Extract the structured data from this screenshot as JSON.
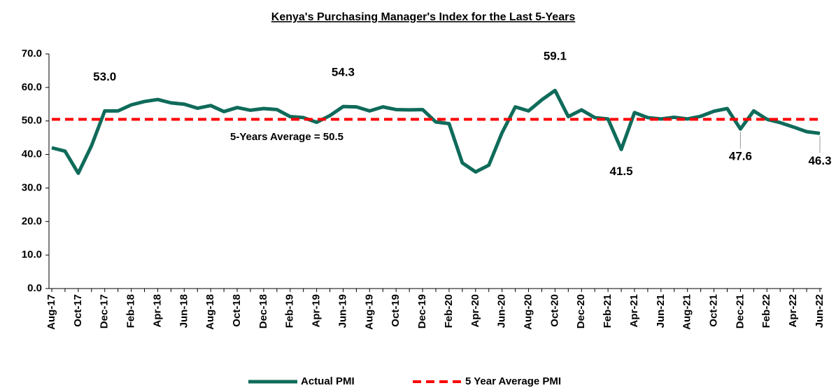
{
  "chart_data": {
    "type": "line",
    "title": "Kenya's Purchasing Manager's Index for the Last 5-Years",
    "categories": [
      "Aug-17",
      null,
      "Oct-17",
      null,
      "Dec-17",
      null,
      "Feb-18",
      null,
      "Apr-18",
      null,
      "Jun-18",
      null,
      "Aug-18",
      null,
      "Oct-18",
      null,
      "Dec-18",
      null,
      "Feb-19",
      null,
      "Apr-19",
      null,
      "Jun-19",
      null,
      "Aug-19",
      null,
      "Oct-19",
      null,
      "Dec-19",
      null,
      "Feb-20",
      null,
      "Apr-20",
      null,
      "Jun-20",
      null,
      "Aug-20",
      null,
      "Oct-20",
      null,
      "Dec-20",
      null,
      "Feb-21",
      null,
      "Apr-21",
      null,
      "Jun-21",
      null,
      "Aug-21",
      null,
      "Oct-21",
      null,
      "Dec-21",
      null,
      "Feb-22",
      null,
      "Apr-22",
      null,
      "Jun-22"
    ],
    "series": [
      {
        "name": "Actual PMI",
        "color": "#0f6b5a",
        "values": [
          42,
          41,
          34.4,
          42.6,
          53,
          53,
          54.8,
          55.8,
          56.4,
          55.4,
          55,
          53.8,
          54.6,
          52.8,
          54,
          53.2,
          53.7,
          53.4,
          51.3,
          51,
          49.6,
          51.6,
          54.3,
          54.2,
          53,
          54.2,
          53.4,
          53.3,
          53.4,
          49.7,
          49.2,
          37.5,
          34.8,
          36.8,
          46.5,
          54.2,
          53,
          56.3,
          59.1,
          51.3,
          53.3,
          51,
          50.6,
          41.5,
          52.5,
          51,
          50.6,
          51.1,
          50.6,
          51.4,
          52.9,
          53.7,
          47.6,
          53,
          50.5,
          49.5,
          48.2,
          46.8,
          46.3
        ],
        "value_labels": [
          null,
          null,
          null,
          null,
          "53.0",
          null,
          null,
          null,
          null,
          null,
          null,
          null,
          null,
          null,
          null,
          null,
          null,
          null,
          null,
          null,
          null,
          null,
          "54.3",
          null,
          null,
          null,
          null,
          null,
          null,
          null,
          null,
          null,
          null,
          null,
          null,
          null,
          null,
          null,
          "59.1",
          null,
          null,
          null,
          null,
          "41.5",
          null,
          null,
          null,
          null,
          null,
          null,
          null,
          null,
          "47.6",
          null,
          null,
          null,
          null,
          null,
          "46.3"
        ]
      },
      {
        "name": "5 Year Average PMI",
        "color": "#ff0000",
        "dashed": true,
        "values": [
          50.5,
          50.5,
          50.5,
          50.5,
          50.5,
          50.5,
          50.5,
          50.5,
          50.5,
          50.5,
          50.5,
          50.5,
          50.5,
          50.5,
          50.5,
          50.5,
          50.5,
          50.5,
          50.5,
          50.5,
          50.5,
          50.5,
          50.5,
          50.5,
          50.5,
          50.5,
          50.5,
          50.5,
          50.5,
          50.5,
          50.5,
          50.5,
          50.5,
          50.5,
          50.5,
          50.5,
          50.5,
          50.5,
          50.5,
          50.5,
          50.5,
          50.5,
          50.5,
          50.5,
          50.5,
          50.5,
          50.5,
          50.5,
          50.5,
          50.5,
          50.5,
          50.5,
          50.5,
          50.5,
          50.5,
          50.5,
          50.5,
          50.5,
          50.5
        ]
      }
    ],
    "annotation": "5-Years  Average = 50.5",
    "ylim": [
      0,
      70
    ],
    "yticks": [
      {
        "value": 0,
        "label": "0.0"
      },
      {
        "value": 10,
        "label": "10.0"
      },
      {
        "value": 20,
        "label": "20.0"
      },
      {
        "value": 30,
        "label": "30.0"
      },
      {
        "value": 40,
        "label": "40.0"
      },
      {
        "value": 50,
        "label": "50.0"
      },
      {
        "value": 60,
        "label": "60.0"
      },
      {
        "value": 70,
        "label": "70.0"
      }
    ],
    "grid": false,
    "legend": "bottom"
  }
}
